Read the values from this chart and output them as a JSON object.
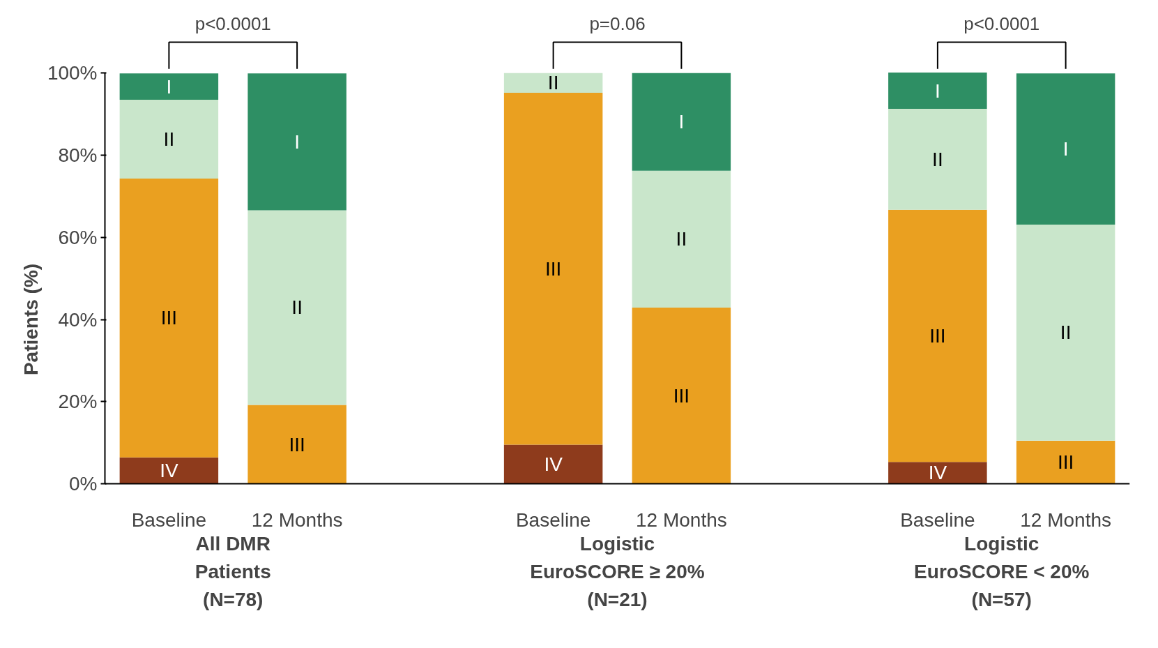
{
  "chart_data": {
    "type": "bar",
    "stacked": true,
    "categories": [
      "Baseline",
      "12 Months",
      null,
      "Baseline",
      "12 Months",
      null,
      "Baseline",
      "12 Months"
    ],
    "series": [
      {
        "name": "IV",
        "color": "#8e3b1c",
        "values": [
          6.4,
          null,
          null,
          9.5,
          null,
          null,
          5.3,
          null
        ]
      },
      {
        "name": "III",
        "color": "#eaa020",
        "values": [
          67.9,
          19.2,
          null,
          85.7,
          42.9,
          null,
          61.4,
          10.5
        ]
      },
      {
        "name": "II",
        "color": "#c9e6cb",
        "values": [
          19.2,
          47.4,
          null,
          4.8,
          33.3,
          null,
          24.6,
          52.6
        ]
      },
      {
        "name": "I",
        "color": "#2e8f64",
        "values": [
          6.4,
          33.3,
          null,
          null,
          23.8,
          null,
          8.8,
          36.8
        ]
      }
    ],
    "ylabel": "Patients (%)",
    "ylim": [
      0,
      100
    ],
    "yticks": [
      {
        "value": 0,
        "label": "0%"
      },
      {
        "value": 20,
        "label": "20%"
      },
      {
        "value": 40,
        "label": "40%"
      },
      {
        "value": 60,
        "label": "60%"
      },
      {
        "value": 80,
        "label": "80%"
      },
      {
        "value": 100,
        "label": "100%"
      }
    ],
    "annotations": [
      "p<0.0001",
      "p=0.06",
      "p<0.0001",
      "All DMR\nPatients\n(N=78)",
      "Logistic\nEuroSCORE ≥ 20%\n(N=21)",
      "Logistic\nEuroSCORE < 20%\n(N=57)"
    ]
  }
}
